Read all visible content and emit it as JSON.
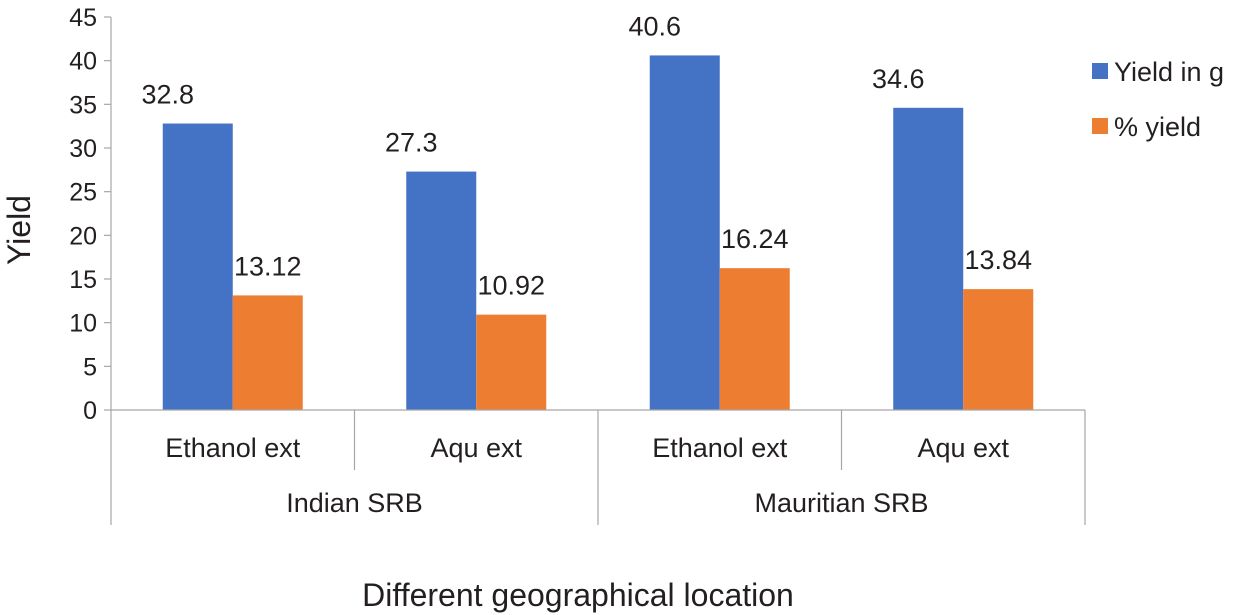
{
  "chart_data": {
    "type": "bar",
    "xlabel": "Different geographical location",
    "ylabel": "Yield",
    "ylim": [
      0,
      45
    ],
    "ytick_step": 5,
    "groups": [
      {
        "label": "Indian SRB",
        "categories": [
          "Ethanol ext",
          "Aqu ext"
        ]
      },
      {
        "label": "Mauritian SRB",
        "categories": [
          "Ethanol ext",
          "Aqu ext"
        ]
      }
    ],
    "series": [
      {
        "name": "Yield in g",
        "color": "#4472c4",
        "values": [
          32.8,
          27.3,
          40.6,
          34.6
        ],
        "labels": [
          "32.8",
          "27.3",
          "40.6",
          "34.6"
        ]
      },
      {
        "name": "% yield",
        "color": "#ed7d31",
        "values": [
          13.12,
          10.92,
          16.24,
          13.84
        ],
        "labels": [
          "13.12",
          "10.92",
          "16.24",
          "13.84"
        ]
      }
    ],
    "legend_position": "right"
  }
}
